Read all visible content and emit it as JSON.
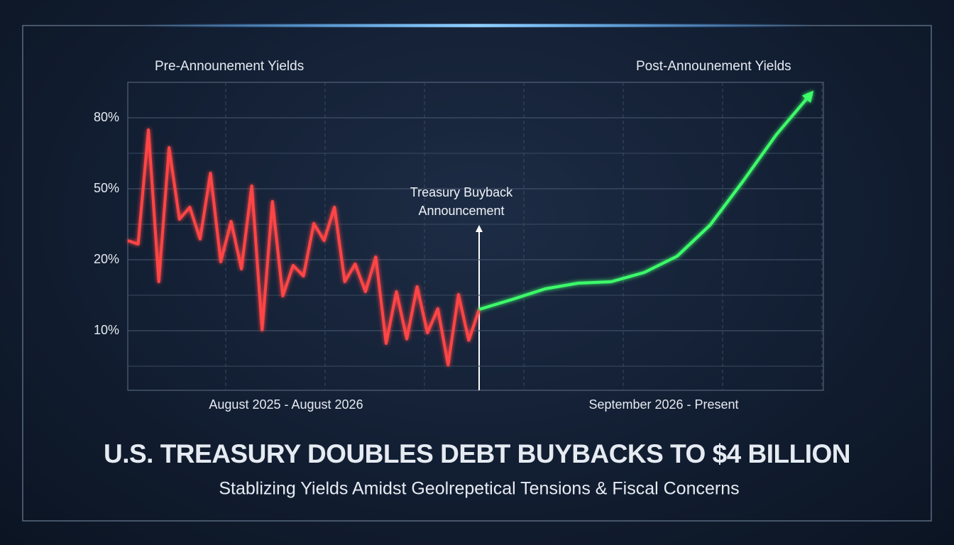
{
  "chart_data": {
    "type": "line",
    "title": "U.S. TREASURY DOUBLES DEBT BUYBACKS TO $4 BILLION",
    "subtitle": "Stablizing Yields Amidst Geolrepetical Tensions & Fiscal Concerns",
    "annotation": "Treasury Buyback Announcement",
    "periods": [
      "August 2025 - August 2026",
      "September 2026 - Present"
    ],
    "ylim": [
      2,
      95
    ],
    "yticks": [
      {
        "value": 80,
        "label": "80%"
      },
      {
        "value": 50,
        "label": "50%"
      },
      {
        "value": 20,
        "label": "20%"
      },
      {
        "value": 10,
        "label": "10%"
      }
    ],
    "grid": true,
    "series": [
      {
        "name": "Pre-Announement Yields",
        "color": "#ff4444",
        "values": [
          28.1,
          26.6,
          74.9,
          16.9,
          67.4,
          37.1,
          42.2,
          28.7,
          56.6,
          19.7,
          36.2,
          18.7,
          51.2,
          10.1,
          44.6,
          14.9,
          19.2,
          17.7,
          35.3,
          28.1,
          42.2,
          16.9,
          19.4,
          15.5,
          21.2,
          8.3,
          15.5,
          8.9,
          16.2,
          9.7,
          13.1,
          5.4,
          15.1,
          8.7,
          13.0
        ]
      },
      {
        "name": "Post-Announement Yields",
        "color": "#3dff6a",
        "values": [
          13.0,
          14.4,
          15.9,
          16.7,
          16.9,
          18.2,
          21.5,
          34.7,
          53.3,
          72.8,
          89.3
        ]
      }
    ]
  }
}
